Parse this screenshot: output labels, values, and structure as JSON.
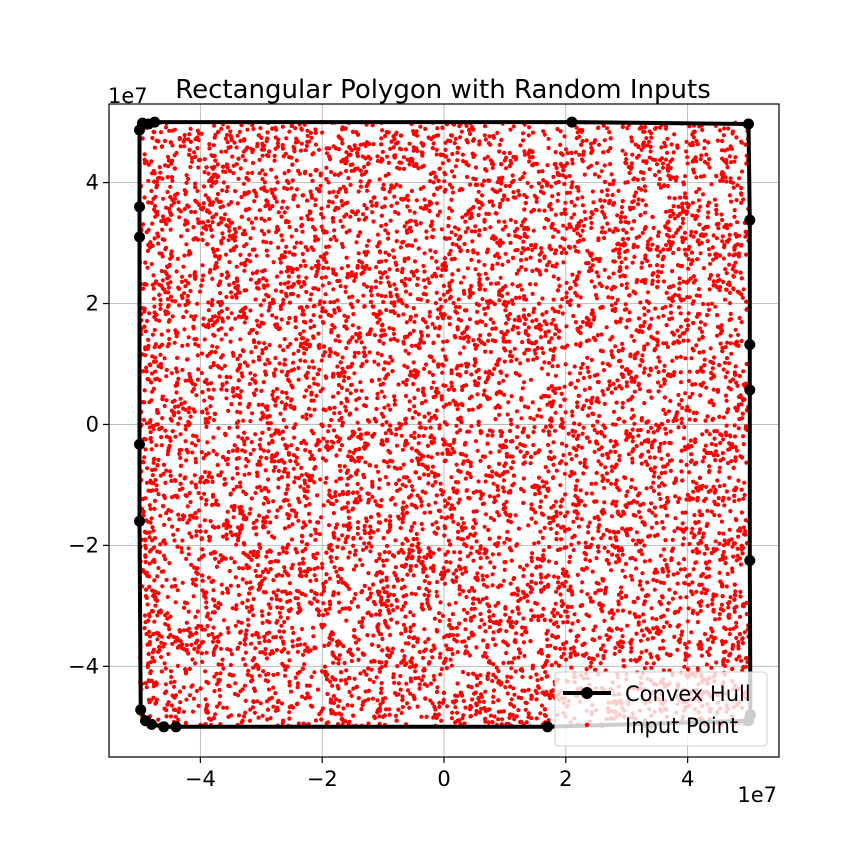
{
  "chart_data": {
    "type": "scatter",
    "title": "Rectangular Polygon with Random Inputs",
    "xlabel": "",
    "ylabel": "",
    "x_offset_label": "1e7",
    "y_offset_label": "1e7",
    "x_scale_exponent": 7,
    "y_scale_exponent": 7,
    "xlim": [
      -5.5,
      5.5
    ],
    "ylim": [
      -5.5,
      5.3
    ],
    "x_ticks": [
      -4,
      -2,
      0,
      2,
      4
    ],
    "y_ticks": [
      -4,
      -2,
      0,
      2,
      4
    ],
    "x_tick_labels": [
      "−4",
      "−2",
      "0",
      "2",
      "4"
    ],
    "y_tick_labels": [
      "−4",
      "−2",
      "0",
      "2",
      "4"
    ],
    "grid": true,
    "legend_position": "bottom-right",
    "colors": {
      "hull": "#000000",
      "points": "#ff0000",
      "grid": "#b0b0b0"
    },
    "series": [
      {
        "name": "Convex Hull",
        "kind": "line-with-markers",
        "x": [
          -4.95,
          -5.0,
          -5.0,
          -5.0,
          -5.0,
          -5.0,
          -4.98,
          -4.9,
          -4.8,
          -4.6,
          -4.4,
          1.7,
          5.0,
          5.03,
          5.02,
          5.02,
          5.02,
          5.02,
          5.0,
          2.1,
          -4.75,
          -4.85,
          -4.95
        ],
        "y": [
          4.98,
          4.87,
          3.6,
          3.1,
          -0.33,
          -1.6,
          -4.72,
          -4.9,
          -4.96,
          -5.0,
          -5.0,
          -5.0,
          -4.9,
          -4.8,
          -2.25,
          0.57,
          1.32,
          3.38,
          4.97,
          5.0,
          5.0,
          4.97,
          4.98
        ]
      },
      {
        "name": "Input Point",
        "kind": "scatter",
        "distribution": "uniform random over [-5e7, 5e7] x [-5e7, 5e7]",
        "count": 9000
      }
    ]
  }
}
